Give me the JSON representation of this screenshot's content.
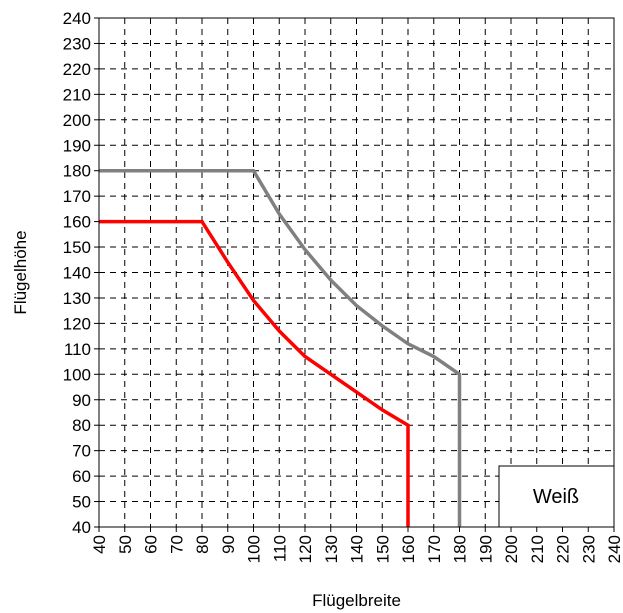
{
  "chart_data": {
    "type": "line",
    "title": "",
    "xlabel": "Flügelbreite",
    "ylabel": "Flügelhöhe",
    "xlim": [
      40,
      240
    ],
    "ylim": [
      40,
      240
    ],
    "xticks": [
      40,
      50,
      60,
      70,
      80,
      90,
      100,
      110,
      120,
      130,
      140,
      150,
      160,
      170,
      180,
      190,
      200,
      210,
      220,
      230,
      240
    ],
    "yticks": [
      40,
      50,
      60,
      70,
      80,
      90,
      100,
      110,
      120,
      130,
      140,
      150,
      160,
      170,
      180,
      190,
      200,
      210,
      220,
      230,
      240
    ],
    "grid": true,
    "legend_label": "Weiß",
    "legend_position": "bottom-right",
    "series": [
      {
        "color": "#808080",
        "points": [
          [
            40,
            180
          ],
          [
            100,
            180
          ],
          [
            110,
            163
          ],
          [
            120,
            149
          ],
          [
            130,
            137
          ],
          [
            140,
            127
          ],
          [
            150,
            119
          ],
          [
            160,
            112
          ],
          [
            170,
            107
          ],
          [
            180,
            100
          ],
          [
            180,
            40
          ]
        ]
      },
      {
        "color": "#ff0000",
        "points": [
          [
            40,
            160
          ],
          [
            80,
            160
          ],
          [
            90,
            144
          ],
          [
            100,
            129
          ],
          [
            110,
            117
          ],
          [
            120,
            107
          ],
          [
            130,
            100
          ],
          [
            140,
            93
          ],
          [
            150,
            86
          ],
          [
            160,
            80
          ],
          [
            160,
            40
          ]
        ]
      }
    ]
  }
}
